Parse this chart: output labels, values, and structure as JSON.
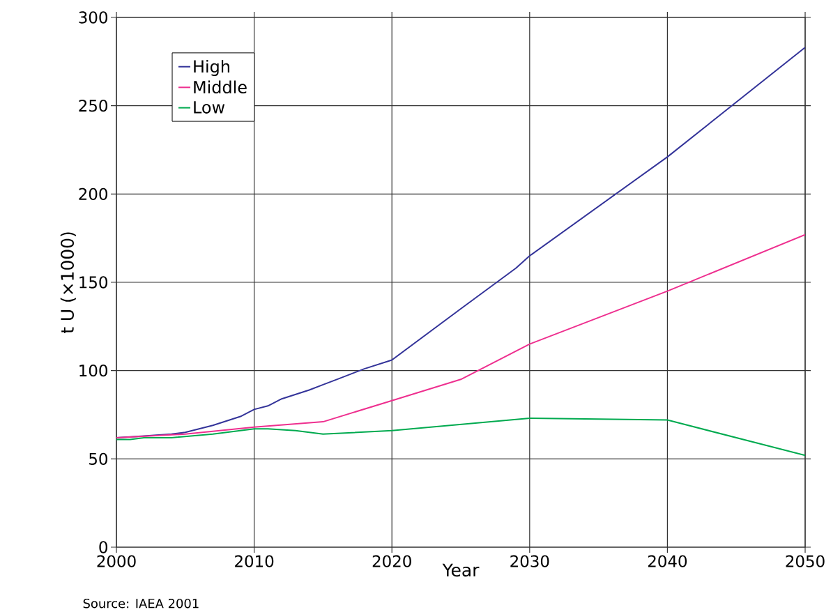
{
  "chart_data": {
    "type": "line",
    "xlabel": "Year",
    "ylabel": "t U (×1000)",
    "xlim": [
      2000,
      2050
    ],
    "ylim": [
      0,
      300
    ],
    "xticks": [
      2000,
      2010,
      2020,
      2030,
      2040,
      2050
    ],
    "yticks": [
      0,
      50,
      100,
      150,
      200,
      250,
      300
    ],
    "grid": true,
    "legend": "top left",
    "marker": "none",
    "line_style": "solid",
    "annotations": [
      "Source: IAEA 2001"
    ],
    "series": [
      {
        "name": "High",
        "color": "#333399",
        "x": [
          2000,
          2002,
          2004,
          2005,
          2007,
          2009,
          2010,
          2011,
          2012,
          2014,
          2015,
          2016,
          2018,
          2020,
          2025,
          2029,
          2030,
          2040,
          2050
        ],
        "values": [
          62,
          63,
          64,
          65,
          69,
          74,
          78,
          80,
          84,
          89,
          92,
          95,
          101,
          106,
          135,
          158,
          165,
          221,
          283
        ]
      },
      {
        "name": "Middle",
        "color": "#ee2f8f",
        "x": [
          2000,
          2005,
          2010,
          2015,
          2020,
          2025,
          2030,
          2040,
          2050
        ],
        "values": [
          62,
          64,
          68,
          71,
          83,
          95,
          115,
          145,
          177
        ]
      },
      {
        "name": "Low",
        "color": "#00aa4f",
        "x": [
          2000,
          2001,
          2002,
          2004,
          2007,
          2010,
          2011,
          2013,
          2015,
          2020,
          2030,
          2040,
          2050
        ],
        "values": [
          61,
          61,
          62,
          62,
          64,
          67,
          67,
          66,
          64,
          66,
          73,
          72,
          52
        ]
      }
    ]
  }
}
